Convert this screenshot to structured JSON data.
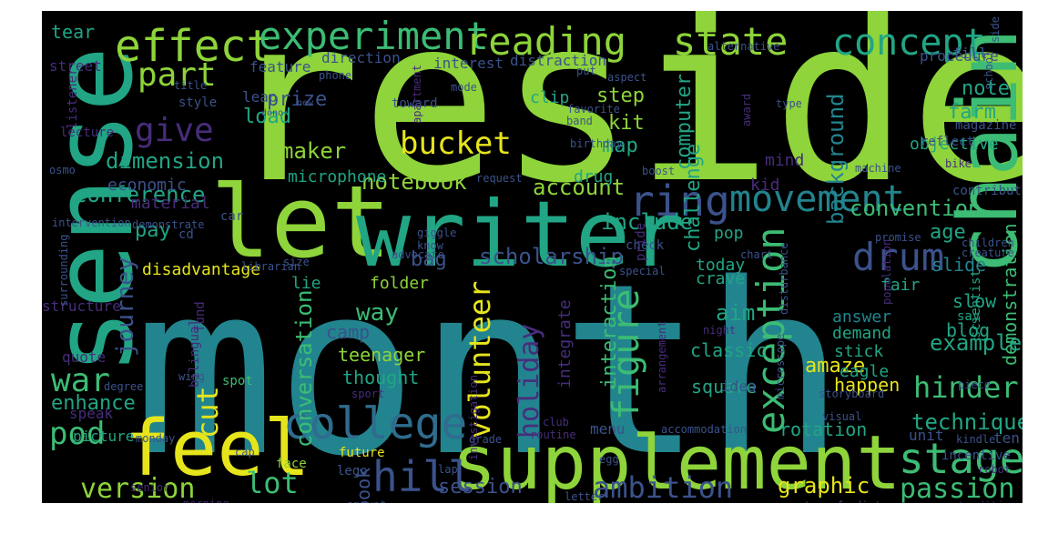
{
  "colors": {
    "background": "#000000",
    "yellow": "#e6e51c",
    "lime": "#8ed43a",
    "green": "#3cbc74",
    "teal": "#21a585",
    "cyan": "#22848e",
    "blue": "#2f6c8e",
    "indigo": "#3b528b",
    "purple": "#472d7b",
    "darkpurple": "#440f5b"
  },
  "words": [
    {
      "text": "reside",
      "color": "lime"
    },
    {
      "text": "month",
      "color": "cyan"
    },
    {
      "text": "sense",
      "color": "teal"
    },
    {
      "text": "let",
      "color": "lime"
    },
    {
      "text": "writer",
      "color": "teal"
    },
    {
      "text": "supplement",
      "color": "lime"
    },
    {
      "text": "feel",
      "color": "yellow"
    },
    {
      "text": "chain",
      "color": "green"
    },
    {
      "text": "effect",
      "color": "lime"
    },
    {
      "text": "experiment",
      "color": "green"
    },
    {
      "text": "reading",
      "color": "lime"
    },
    {
      "text": "state",
      "color": "lime"
    },
    {
      "text": "concept",
      "color": "teal"
    },
    {
      "text": "college",
      "color": "blue"
    },
    {
      "text": "stage",
      "color": "green"
    },
    {
      "text": "exception",
      "color": "green"
    },
    {
      "text": "ring",
      "color": "indigo"
    },
    {
      "text": "movement",
      "color": "cyan"
    },
    {
      "text": "drum",
      "color": "indigo"
    },
    {
      "text": "part",
      "color": "lime"
    },
    {
      "text": "give",
      "color": "purple"
    },
    {
      "text": "bucket",
      "color": "yellow"
    },
    {
      "text": "hill",
      "color": "indigo"
    },
    {
      "text": "war",
      "color": "green"
    },
    {
      "text": "pod",
      "color": "green"
    },
    {
      "text": "cut",
      "color": "yellow"
    },
    {
      "text": "version",
      "color": "lime"
    },
    {
      "text": "lot",
      "color": "green"
    },
    {
      "text": "ambition",
      "color": "indigo"
    },
    {
      "text": "passion",
      "color": "green"
    },
    {
      "text": "figure",
      "color": "green"
    },
    {
      "text": "volunteer",
      "color": "yellow"
    },
    {
      "text": "holiday",
      "color": "purple"
    },
    {
      "text": "journey",
      "color": "indigo"
    },
    {
      "text": "hinder",
      "color": "green"
    },
    {
      "text": "background",
      "color": "cyan"
    },
    {
      "text": "conversation",
      "color": "green"
    },
    {
      "text": "graphic",
      "color": "yellow"
    },
    {
      "text": "session",
      "color": "indigo"
    },
    {
      "text": "enhance",
      "color": "teal"
    },
    {
      "text": "technique",
      "color": "teal"
    },
    {
      "text": "challenge",
      "color": "teal"
    },
    {
      "text": "computer",
      "color": "teal"
    },
    {
      "text": "dimension",
      "color": "teal"
    },
    {
      "text": "maker",
      "color": "lime"
    },
    {
      "text": "conference",
      "color": "teal"
    },
    {
      "text": "notebook",
      "color": "lime"
    },
    {
      "text": "account",
      "color": "lime"
    },
    {
      "text": "include",
      "color": "teal"
    },
    {
      "text": "convention",
      "color": "green"
    },
    {
      "text": "scholarship",
      "color": "indigo"
    },
    {
      "text": "interaction",
      "color": "green"
    },
    {
      "text": "demonstration",
      "color": "green"
    },
    {
      "text": "example",
      "color": "teal"
    },
    {
      "text": "amaze",
      "color": "yellow"
    },
    {
      "text": "step",
      "color": "lime"
    },
    {
      "text": "prize",
      "color": "indigo"
    },
    {
      "text": "load",
      "color": "teal"
    },
    {
      "text": "kit",
      "color": "lime"
    },
    {
      "text": "map",
      "color": "teal"
    },
    {
      "text": "note",
      "color": "teal"
    },
    {
      "text": "farm",
      "color": "teal"
    },
    {
      "text": "way",
      "color": "green"
    },
    {
      "text": "aim",
      "color": "teal"
    },
    {
      "text": "bag",
      "color": "indigo"
    },
    {
      "text": "pay",
      "color": "teal"
    },
    {
      "text": "age",
      "color": "teal"
    },
    {
      "text": "camp",
      "color": "indigo"
    },
    {
      "text": "teenager",
      "color": "lime"
    },
    {
      "text": "thought",
      "color": "teal"
    },
    {
      "text": "happen",
      "color": "yellow"
    },
    {
      "text": "rotation",
      "color": "teal"
    },
    {
      "text": "book",
      "color": "indigo"
    },
    {
      "text": "integrate",
      "color": "purple"
    },
    {
      "text": "economic",
      "color": "indigo"
    },
    {
      "text": "disadvantage",
      "color": "yellow"
    },
    {
      "text": "lie",
      "color": "teal"
    },
    {
      "text": "blog",
      "color": "teal"
    },
    {
      "text": "slow",
      "color": "teal"
    },
    {
      "text": "slide",
      "color": "cyan"
    },
    {
      "text": "square",
      "color": "teal"
    },
    {
      "text": "classic",
      "color": "teal"
    },
    {
      "text": "demand",
      "color": "teal"
    },
    {
      "text": "stick",
      "color": "teal"
    },
    {
      "text": "answer",
      "color": "cyan"
    },
    {
      "text": "eagle",
      "color": "teal"
    },
    {
      "text": "material",
      "color": "purple"
    },
    {
      "text": "microphone",
      "color": "teal"
    },
    {
      "text": "folder",
      "color": "lime"
    },
    {
      "text": "crave",
      "color": "teal"
    },
    {
      "text": "pop",
      "color": "teal"
    },
    {
      "text": "today",
      "color": "teal"
    },
    {
      "text": "drug",
      "color": "teal"
    },
    {
      "text": "mind",
      "color": "purple"
    },
    {
      "text": "kid",
      "color": "purple"
    },
    {
      "text": "fair",
      "color": "teal"
    },
    {
      "text": "objective",
      "color": "teal"
    },
    {
      "text": "idea",
      "color": "indigo"
    },
    {
      "text": "leap",
      "color": "indigo"
    },
    {
      "text": "clip",
      "color": "teal"
    },
    {
      "text": "tear",
      "color": "teal"
    },
    {
      "text": "street",
      "color": "purple"
    },
    {
      "text": "feature",
      "color": "indigo"
    },
    {
      "text": "direction",
      "color": "indigo"
    },
    {
      "text": "distraction",
      "color": "indigo"
    },
    {
      "text": "interest",
      "color": "indigo"
    },
    {
      "text": "procedure",
      "color": "indigo"
    },
    {
      "text": "fill",
      "color": "indigo"
    },
    {
      "text": "magazine",
      "color": "indigo"
    },
    {
      "text": "quote",
      "color": "purple"
    },
    {
      "text": "speak",
      "color": "purple"
    },
    {
      "text": "picture",
      "color": "teal"
    },
    {
      "text": "lego",
      "color": "indigo"
    },
    {
      "text": "future",
      "color": "yellow"
    },
    {
      "text": "menu",
      "color": "indigo"
    },
    {
      "text": "unit",
      "color": "indigo"
    },
    {
      "text": "ten",
      "color": "indigo"
    },
    {
      "text": "scientist",
      "color": "teal"
    },
    {
      "text": "say",
      "color": "teal"
    },
    {
      "text": "contribute",
      "color": "indigo"
    },
    {
      "text": "reflect",
      "color": "indigo"
    },
    {
      "text": "incentive",
      "color": "indigo"
    },
    {
      "text": "listener",
      "color": "purple"
    },
    {
      "text": "lecture",
      "color": "purple"
    },
    {
      "text": "style",
      "color": "indigo"
    },
    {
      "text": "structure",
      "color": "purple"
    },
    {
      "text": "spot",
      "color": "green"
    },
    {
      "text": "face",
      "color": "lime"
    },
    {
      "text": "cd",
      "color": "indigo"
    },
    {
      "text": "car",
      "color": "indigo"
    },
    {
      "text": "title",
      "color": "indigo"
    },
    {
      "text": "phone",
      "color": "indigo"
    },
    {
      "text": "mode",
      "color": "indigo"
    },
    {
      "text": "toward",
      "color": "indigo"
    },
    {
      "text": "favorite",
      "color": "indigo"
    },
    {
      "text": "band",
      "color": "indigo"
    },
    {
      "text": "birthday",
      "color": "indigo"
    },
    {
      "text": "boost",
      "color": "indigo"
    },
    {
      "text": "request",
      "color": "indigo"
    },
    {
      "text": "know",
      "color": "indigo"
    },
    {
      "text": "check",
      "color": "indigo"
    },
    {
      "text": "pride",
      "color": "purple"
    },
    {
      "text": "special",
      "color": "indigo"
    },
    {
      "text": "giggle",
      "color": "indigo"
    },
    {
      "text": "advocate",
      "color": "indigo"
    },
    {
      "text": "size",
      "color": "indigo"
    },
    {
      "text": "librarian",
      "color": "indigo"
    },
    {
      "text": "demonstrate",
      "color": "indigo"
    },
    {
      "text": "intervention",
      "color": "indigo"
    },
    {
      "text": "osmo",
      "color": "indigo"
    },
    {
      "text": "night",
      "color": "purple"
    },
    {
      "text": "arrangement",
      "color": "purple"
    },
    {
      "text": "bilingual",
      "color": "purple"
    },
    {
      "text": "fund",
      "color": "purple"
    },
    {
      "text": "wing",
      "color": "indigo"
    },
    {
      "text": "degree",
      "color": "indigo"
    },
    {
      "text": "sport",
      "color": "purple"
    },
    {
      "text": "monday",
      "color": "indigo"
    },
    {
      "text": "cap",
      "color": "indigo"
    },
    {
      "text": "senior",
      "color": "purple"
    },
    {
      "text": "morning",
      "color": "purple"
    },
    {
      "text": "amount",
      "color": "indigo"
    },
    {
      "text": "puzzle",
      "color": "purple"
    },
    {
      "text": "letter",
      "color": "indigo"
    },
    {
      "text": "lap",
      "color": "indigo"
    },
    {
      "text": "egg",
      "color": "indigo"
    },
    {
      "text": "grade",
      "color": "indigo"
    },
    {
      "text": "routine",
      "color": "purple"
    },
    {
      "text": "investigation",
      "color": "purple"
    },
    {
      "text": "accommodation",
      "color": "indigo"
    },
    {
      "text": "visual",
      "color": "indigo"
    },
    {
      "text": "storyboard",
      "color": "indigo"
    },
    {
      "text": "microscope",
      "color": "indigo"
    },
    {
      "text": "club",
      "color": "purple"
    },
    {
      "text": "transfer",
      "color": "indigo"
    },
    {
      "text": "distract",
      "color": "indigo"
    },
    {
      "text": "tradition",
      "color": "purple"
    },
    {
      "text": "robot",
      "color": "purple"
    },
    {
      "text": "kindle",
      "color": "indigo"
    },
    {
      "text": "piece",
      "color": "indigo"
    },
    {
      "text": "creature",
      "color": "indigo"
    },
    {
      "text": "population",
      "color": "purple"
    },
    {
      "text": "disturbance",
      "color": "indigo"
    },
    {
      "text": "chart",
      "color": "indigo"
    },
    {
      "text": "promise",
      "color": "indigo"
    },
    {
      "text": "children",
      "color": "indigo"
    },
    {
      "text": "machine",
      "color": "indigo"
    },
    {
      "text": "bike",
      "color": "purple"
    },
    {
      "text": "award",
      "color": "purple"
    },
    {
      "text": "type",
      "color": "indigo"
    },
    {
      "text": "school",
      "color": "indigo"
    },
    {
      "text": "side",
      "color": "indigo"
    },
    {
      "text": "alternative",
      "color": "indigo"
    },
    {
      "text": "aspect",
      "color": "indigo"
    },
    {
      "text": "put",
      "color": "indigo"
    },
    {
      "text": "apartment",
      "color": "purple"
    },
    {
      "text": "new",
      "color": "indigo"
    },
    {
      "text": "donor",
      "color": "indigo"
    },
    {
      "text": "surrounding",
      "color": "indigo"
    }
  ]
}
